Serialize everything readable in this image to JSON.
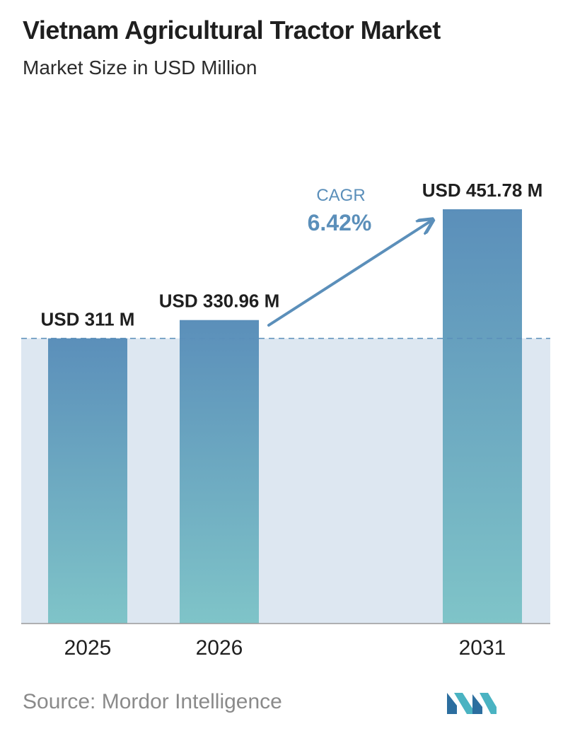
{
  "header": {
    "title": "Vietnam Agricultural Tractor Market",
    "subtitle": "Market Size in USD Million"
  },
  "chart_data": {
    "type": "bar",
    "title": "Vietnam Agricultural Tractor Market",
    "subtitle": "Market Size in USD Million",
    "categories": [
      "2025",
      "2026",
      "2031"
    ],
    "values": [
      311,
      330.96,
      451.78
    ],
    "data_labels": [
      "USD 311 M",
      "USD 330.96 M",
      "USD 451.78 M"
    ],
    "unit": "USD Million",
    "reference_line_value": 311,
    "cagr": {
      "label": "CAGR",
      "value": "6.42%"
    },
    "bar_gradient": {
      "top": "#5b8fba",
      "bottom": "#7fc4c8"
    },
    "band_color": "#dde7f1",
    "accent_color": "#5b8fba",
    "grid": false,
    "legend": "none"
  },
  "footer": {
    "source": "Source:  Mordor Intelligence",
    "logo": "mordor-intelligence-logo"
  }
}
